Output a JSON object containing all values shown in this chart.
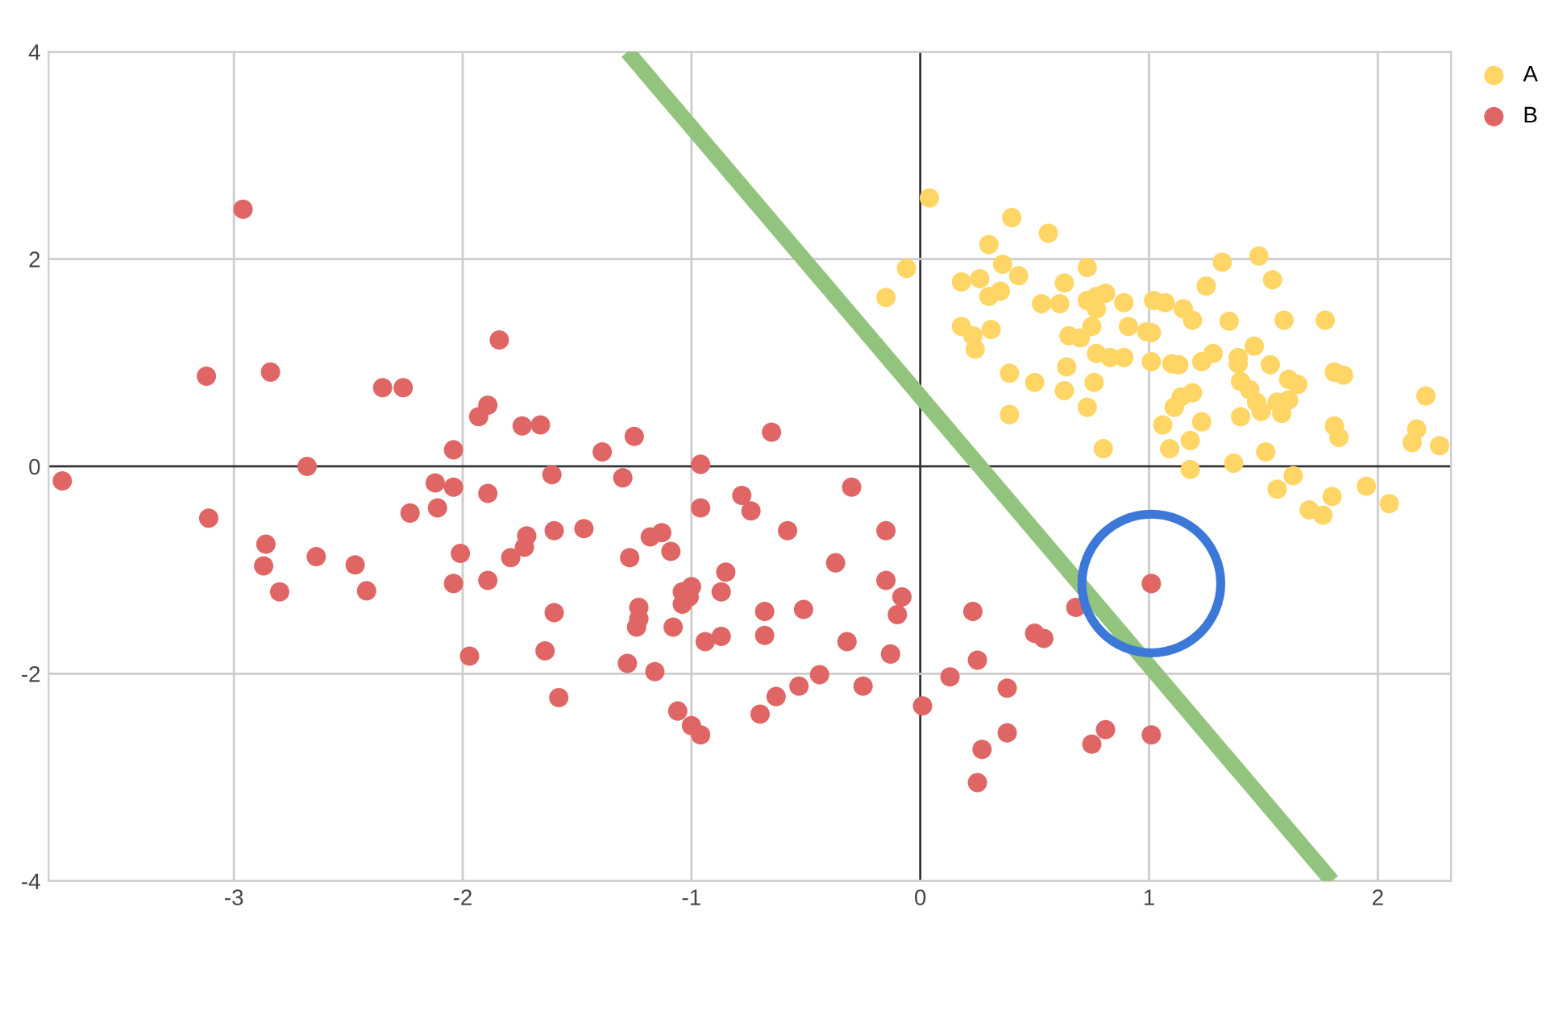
{
  "chart_data": {
    "type": "scatter",
    "xlim": [
      -3.81,
      2.32
    ],
    "ylim": [
      -4,
      4
    ],
    "xticks": [
      {
        "value": -3,
        "label": "-3"
      },
      {
        "value": -2,
        "label": "-2"
      },
      {
        "value": -1,
        "label": "-1"
      },
      0,
      1,
      2
    ],
    "yticks": [
      {
        "value": -4,
        "label": "-4"
      },
      {
        "value": -2,
        "label": "-2"
      },
      0,
      2,
      4
    ],
    "grid": true,
    "legend": "top right",
    "marker": "circle",
    "series": [
      {
        "name": "A",
        "color": "#ffd666",
        "x": [
          0.04,
          -0.06,
          -0.15,
          0.4,
          0.3,
          0.36,
          0.18,
          0.26,
          0.3,
          0.35,
          0.18,
          0.23,
          0.24,
          0.31,
          0.39,
          0.39,
          0.56,
          0.43,
          0.63,
          0.73,
          0.53,
          0.61,
          0.73,
          0.77,
          0.81,
          0.77,
          0.89,
          1.02,
          1.07,
          1.15,
          1.19,
          1.25,
          1.32,
          1.48,
          1.54,
          1.35,
          1.59,
          1.77,
          0.65,
          0.7,
          0.75,
          0.91,
          0.99,
          1.01,
          0.77,
          0.83,
          0.89,
          1.01,
          1.1,
          1.13,
          1.23,
          1.28,
          1.39,
          1.39,
          1.46,
          1.53,
          1.4,
          1.44,
          1.47,
          1.49,
          1.56,
          1.58,
          1.61,
          1.61,
          1.65,
          1.81,
          1.85,
          0.5,
          0.64,
          0.63,
          0.76,
          0.73,
          1.19,
          1.14,
          1.11,
          1.06,
          1.23,
          1.4,
          1.18,
          1.09,
          0.8,
          1.37,
          1.18,
          1.51,
          1.81,
          1.83,
          2.21,
          2.17,
          2.15,
          2.27,
          1.56,
          1.63,
          1.7,
          1.76,
          1.8,
          1.95,
          2.05
        ],
        "values": [
          2.59,
          1.91,
          1.63,
          2.4,
          2.14,
          1.95,
          1.78,
          1.81,
          1.64,
          1.69,
          1.35,
          1.26,
          1.13,
          1.32,
          0.9,
          0.5,
          2.25,
          1.84,
          1.77,
          1.92,
          1.57,
          1.57,
          1.6,
          1.64,
          1.67,
          1.52,
          1.58,
          1.6,
          1.58,
          1.52,
          1.41,
          1.74,
          1.97,
          2.03,
          1.8,
          1.4,
          1.41,
          1.41,
          1.26,
          1.24,
          1.35,
          1.35,
          1.3,
          1.29,
          1.09,
          1.05,
          1.05,
          1.01,
          0.99,
          0.98,
          1.01,
          1.09,
          1.05,
          0.99,
          1.16,
          0.98,
          0.82,
          0.74,
          0.62,
          0.53,
          0.62,
          0.51,
          0.64,
          0.84,
          0.79,
          0.91,
          0.88,
          0.81,
          0.96,
          0.73,
          0.81,
          0.57,
          0.71,
          0.67,
          0.57,
          0.4,
          0.43,
          0.48,
          0.25,
          0.17,
          0.17,
          0.03,
          -0.03,
          0.14,
          0.39,
          0.28,
          0.68,
          0.36,
          0.23,
          0.2,
          -0.22,
          -0.09,
          -0.42,
          -0.47,
          -0.29,
          -0.19,
          -0.36
        ]
      },
      {
        "name": "B",
        "color": "#e06666",
        "x": [
          -3.75,
          -2.96,
          -3.12,
          -2.84,
          -3.11,
          -2.68,
          -2.86,
          -2.87,
          -2.8,
          -2.64,
          -2.47,
          -2.42,
          -2.35,
          -2.26,
          -2.23,
          -2.12,
          -2.11,
          -2.04,
          -2.04,
          -2.01,
          -2.04,
          -1.97,
          -1.93,
          -1.89,
          -1.89,
          -1.89,
          -1.84,
          -1.79,
          -1.74,
          -1.66,
          -1.73,
          -1.72,
          -1.61,
          -1.6,
          -1.6,
          -1.64,
          -1.58,
          -1.47,
          -1.39,
          -1.3,
          -1.25,
          -1.27,
          -1.23,
          -1.23,
          -1.24,
          -1.28,
          -1.16,
          -1.18,
          -1.13,
          -1.09,
          -1.08,
          -1.04,
          -1.04,
          -1.01,
          -1.0,
          -1.06,
          -1.0,
          -0.96,
          -0.96,
          -0.96,
          -0.94,
          -0.87,
          -0.85,
          -0.87,
          -0.78,
          -0.74,
          -0.68,
          -0.65,
          -0.3,
          -0.58,
          -0.37,
          -0.51,
          -0.32,
          -0.44,
          -0.53,
          -0.63,
          -0.7,
          -0.68,
          -0.25,
          -0.15,
          -0.15,
          -0.08,
          -0.1,
          -0.13,
          0.01,
          0.13,
          0.23,
          0.25,
          0.38,
          0.38,
          0.27,
          0.25,
          0.5,
          0.54,
          0.68,
          0.81,
          0.75,
          1.01,
          1.01
        ],
        "values": [
          -0.14,
          2.48,
          0.87,
          0.91,
          -0.5,
          0.0,
          -0.75,
          -0.96,
          -1.21,
          -0.87,
          -0.95,
          -1.2,
          0.76,
          0.76,
          -0.45,
          -0.16,
          -0.4,
          -0.2,
          0.16,
          -0.84,
          -1.13,
          -1.83,
          0.48,
          0.59,
          -0.26,
          -1.1,
          1.22,
          -0.88,
          0.39,
          0.4,
          -0.78,
          -0.67,
          -0.08,
          -0.62,
          -1.41,
          -1.78,
          -2.23,
          -0.6,
          0.14,
          -0.11,
          0.29,
          -0.88,
          -1.36,
          -1.47,
          -1.55,
          -1.9,
          -1.98,
          -0.68,
          -0.64,
          -0.82,
          -1.55,
          -1.33,
          -1.21,
          -1.26,
          -1.16,
          -2.36,
          -2.5,
          -2.59,
          0.02,
          -0.4,
          -1.69,
          -1.21,
          -1.02,
          -1.64,
          -0.28,
          -0.43,
          -1.4,
          0.33,
          -0.2,
          -0.62,
          -0.93,
          -1.38,
          -1.69,
          -2.01,
          -2.12,
          -2.22,
          -2.39,
          -1.63,
          -2.12,
          -0.62,
          -1.1,
          -1.26,
          -1.43,
          -1.81,
          -2.31,
          -2.03,
          -1.4,
          -1.87,
          -2.14,
          -2.57,
          -2.73,
          -3.05,
          -1.61,
          -1.66,
          -1.36,
          -2.54,
          -2.68,
          -2.59,
          -1.13
        ]
      },
      {
        "type": "line",
        "marker": "none",
        "color": "#93c47d",
        "x": [
          -1.28,
          1.8
        ],
        "values": [
          4,
          -4
        ]
      }
    ]
  }
}
